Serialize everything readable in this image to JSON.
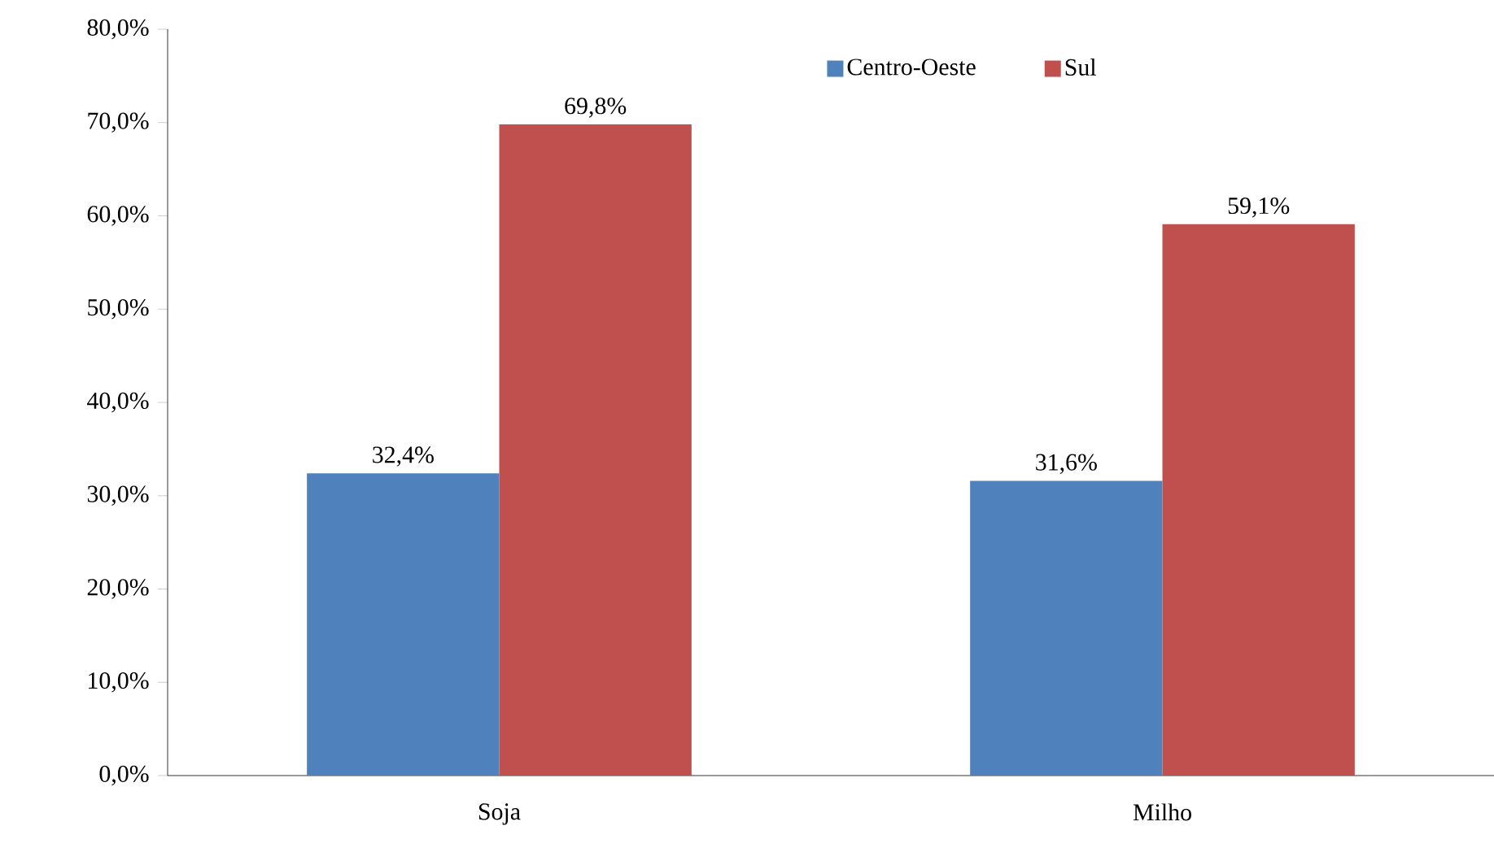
{
  "chart_data": {
    "type": "bar",
    "categories": [
      "Soja",
      "Milho"
    ],
    "series": [
      {
        "name": "Centro-Oeste",
        "color": "#4f81bd",
        "values": [
          32.4,
          31.6
        ],
        "value_labels": [
          "32,4%",
          "31,6%"
        ]
      },
      {
        "name": "Sul",
        "color": "#c0504d",
        "values": [
          69.8,
          59.1
        ],
        "value_labels": [
          "69,8%",
          "59,1%"
        ]
      }
    ],
    "ylim": [
      0,
      80
    ],
    "yticks": [
      {
        "value": 0,
        "label": "0,0%"
      },
      {
        "value": 10,
        "label": "10,0%"
      },
      {
        "value": 20,
        "label": "20,0%"
      },
      {
        "value": 30,
        "label": "30,0%"
      },
      {
        "value": 40,
        "label": "40,0%"
      },
      {
        "value": 50,
        "label": "50,0%"
      },
      {
        "value": 60,
        "label": "60,0%"
      },
      {
        "value": 70,
        "label": "70,0%"
      },
      {
        "value": 80,
        "label": "80,0%"
      }
    ],
    "grid": false,
    "legend": "top"
  }
}
